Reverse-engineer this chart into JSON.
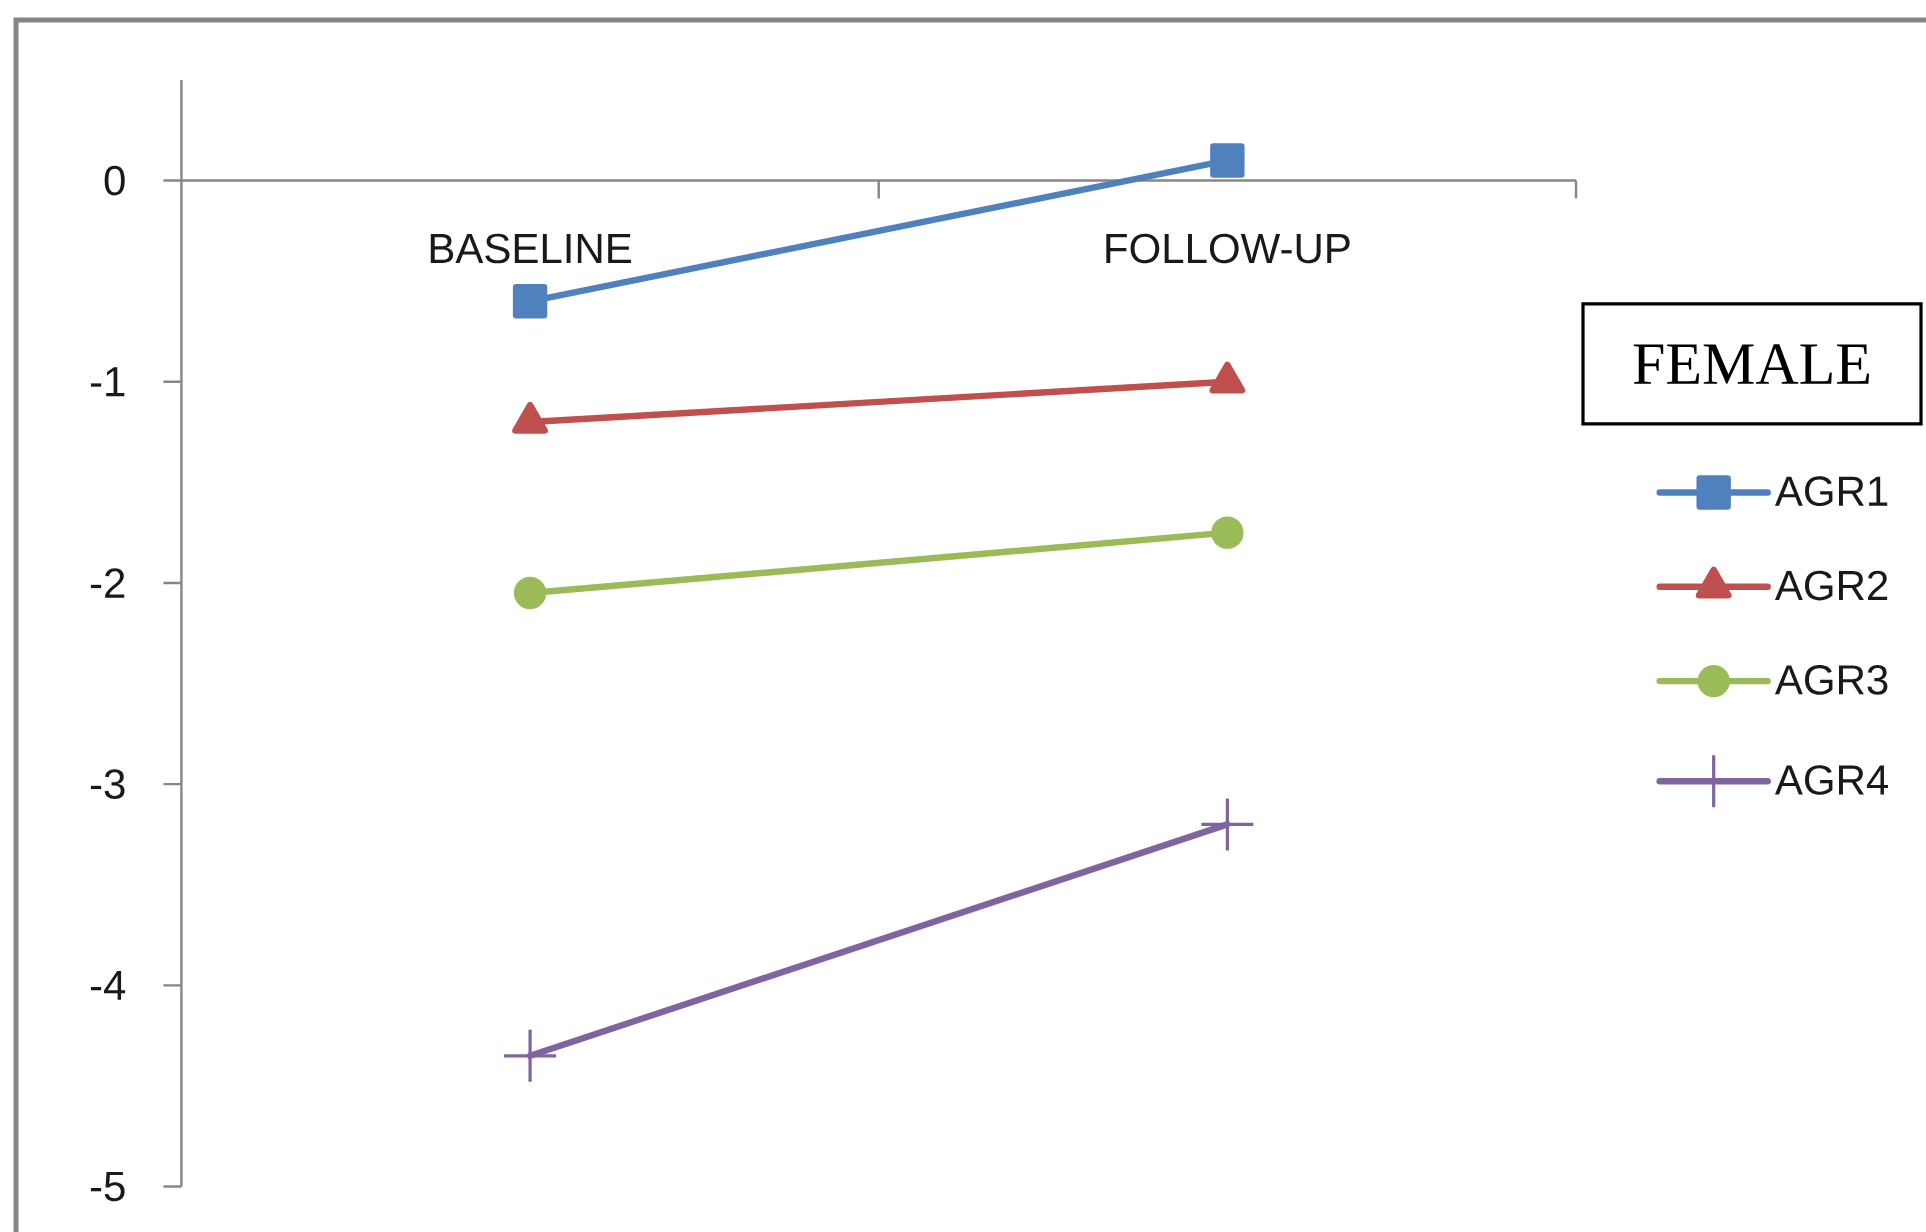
{
  "chart_data": {
    "type": "line",
    "categories": [
      "BASELINE",
      "FOLLOW-UP"
    ],
    "series": [
      {
        "name": "AGR1",
        "color": "#4f81bd",
        "marker": "square",
        "values": [
          -0.6,
          0.1
        ]
      },
      {
        "name": "AGR2",
        "color": "#c0504d",
        "marker": "triangle",
        "values": [
          -1.2,
          -1.0
        ]
      },
      {
        "name": "AGR3",
        "color": "#9bbb59",
        "marker": "circle",
        "values": [
          -2.05,
          -1.75
        ]
      },
      {
        "name": "AGR4",
        "color": "#8064a2",
        "marker": "cross",
        "values": [
          -4.35,
          -3.2
        ]
      }
    ],
    "ylim": [
      -5,
      0.5
    ],
    "yticks": [
      -5,
      -4,
      -3,
      -2,
      -1,
      0
    ],
    "legend": "right",
    "legend_title": "FEMALE"
  }
}
